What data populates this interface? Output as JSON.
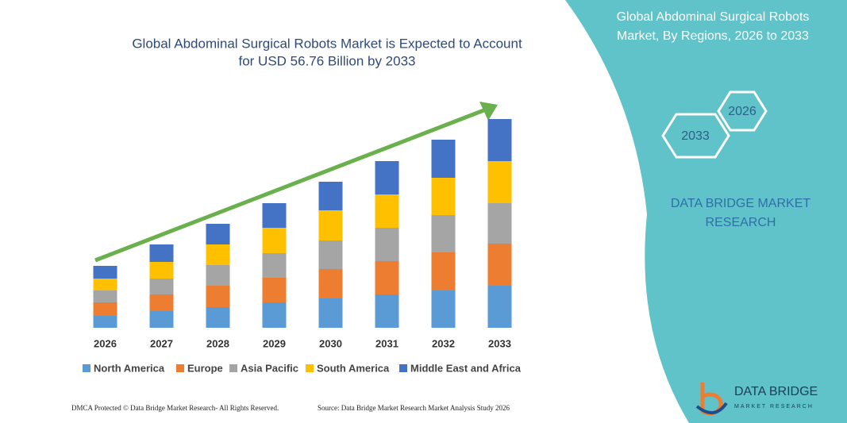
{
  "chart_data": {
    "type": "bar",
    "stacked": true,
    "title": [
      "Global Abdominal Surgical Robots Market is Expected to Account",
      "for USD 56.76 Billion by 2033"
    ],
    "categories": [
      "2026",
      "2027",
      "2028",
      "2029",
      "2030",
      "2031",
      "2032",
      "2033"
    ],
    "series": [
      {
        "name": "North America",
        "color": "#5b9bd5",
        "values": [
          15,
          21,
          26,
          32,
          37,
          42,
          47,
          53
        ]
      },
      {
        "name": "Europe",
        "color": "#ed7d31",
        "values": [
          17,
          21,
          27,
          31,
          37,
          42,
          48,
          53
        ]
      },
      {
        "name": "Asia Pacific",
        "color": "#a5a5a5",
        "values": [
          15,
          20,
          26,
          31,
          36,
          42,
          47,
          51
        ]
      },
      {
        "name": "South America",
        "color": "#ffc000",
        "values": [
          15,
          21,
          26,
          32,
          38,
          42,
          47,
          53
        ]
      },
      {
        "name": "Middle East and Africa",
        "color": "#4472c4",
        "values": [
          16,
          22,
          26,
          31,
          36,
          42,
          48,
          53
        ]
      }
    ]
  },
  "panel": {
    "title": [
      "Global Abdominal Surgical Robots",
      "Market, By Regions, 2026 to 2033"
    ],
    "hex_labels": [
      "2026",
      "2033"
    ],
    "brand": [
      "DATA BRIDGE MARKET",
      "RESEARCH"
    ]
  },
  "logo": {
    "name": "DATA BRIDGE",
    "tagline": "MARKET RESEARCH"
  },
  "footer": {
    "left": "DMCA Protected © Data Bridge Market Research- All Rights Reserved.",
    "right": "Source: Data Bridge Market Research Market Analysis Study 2026"
  }
}
